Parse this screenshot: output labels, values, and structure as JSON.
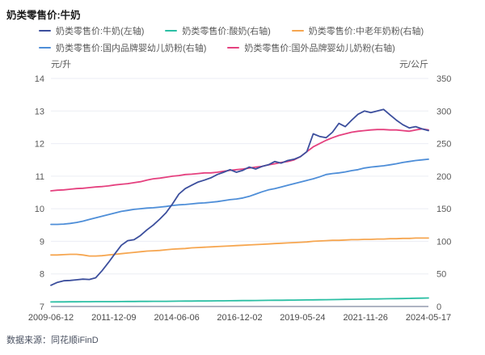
{
  "header": {
    "title": "奶类零售价:牛奶"
  },
  "source": {
    "text": "数据来源：同花顺iFinD"
  },
  "colors": {
    "grid": "#ebedf4",
    "axis_line": "#aeb4c2",
    "tick_text": "#595959",
    "x_tick_text": "#4a4a4a"
  },
  "chart_data": {
    "type": "line",
    "title": "奶类零售价:牛奶",
    "grid": "horizontal-only",
    "legend_position": "top-left",
    "x_labels": [
      "2009-06-12",
      "2011-12-09",
      "2014-06-06",
      "2016-12-02",
      "2019-05-24",
      "2021-11-26",
      "2024-05-17"
    ],
    "left_axis": {
      "unit": "元/升",
      "min": 7,
      "max": 14,
      "ticks": [
        14,
        13,
        12,
        11,
        10,
        9,
        8,
        7
      ]
    },
    "right_axis": {
      "unit": "元/公斤",
      "min": 0,
      "max": 350,
      "ticks": [
        350,
        300,
        250,
        200,
        150,
        100,
        50,
        0
      ]
    },
    "legend_rows": [
      [
        0,
        1,
        2
      ],
      [
        3,
        4
      ]
    ],
    "draw_order": [
      1,
      2,
      3,
      4,
      0
    ],
    "series": [
      {
        "name": "奶类零售价:牛奶(左轴)",
        "axis": "left",
        "color": "#3c4f9d",
        "values": [
          7.65,
          7.74,
          7.79,
          7.8,
          7.82,
          7.84,
          7.83,
          7.88,
          8.1,
          8.35,
          8.62,
          8.88,
          9.02,
          9.05,
          9.18,
          9.35,
          9.5,
          9.68,
          9.88,
          10.15,
          10.45,
          10.62,
          10.72,
          10.82,
          10.88,
          10.95,
          11.05,
          11.12,
          11.2,
          11.12,
          11.18,
          11.28,
          11.22,
          11.3,
          11.35,
          11.45,
          11.4,
          11.48,
          11.52,
          11.6,
          11.75,
          12.3,
          12.22,
          12.18,
          12.35,
          12.62,
          12.52,
          12.72,
          12.9,
          13.0,
          12.95,
          13.0,
          13.05,
          12.88,
          12.72,
          12.58,
          12.48,
          12.52,
          12.45,
          12.4
        ]
      },
      {
        "name": "奶类零售价:酸奶(右轴)",
        "axis": "right",
        "color": "#2bbfa4",
        "values": [
          7.0,
          7.1,
          7.1,
          7.2,
          7.2,
          7.3,
          7.3,
          7.4,
          7.4,
          7.5,
          7.5,
          7.6,
          7.7,
          7.7,
          7.8,
          7.8,
          7.9,
          8.0,
          8.0,
          8.1,
          8.2,
          8.3,
          8.3,
          8.4,
          8.5,
          8.6,
          8.7,
          8.7,
          8.8,
          8.9,
          9.0,
          9.1,
          9.2,
          9.3,
          9.4,
          9.5,
          9.6,
          9.7,
          9.8,
          9.9,
          10.0,
          10.2,
          10.3,
          10.4,
          10.6,
          10.7,
          10.9,
          11.0,
          11.2,
          11.3,
          11.5,
          11.6,
          11.8,
          11.9,
          12.1,
          12.2,
          12.4,
          12.6,
          12.8,
          13.0
        ]
      },
      {
        "name": "奶类零售价:中老年奶粉(右轴)",
        "axis": "right",
        "color": "#f6a650",
        "values": [
          79,
          79,
          79.5,
          80,
          80,
          79,
          77.5,
          77.5,
          78,
          79,
          80,
          81,
          82,
          83,
          84,
          85,
          85.5,
          86,
          87,
          88,
          88.5,
          89,
          90,
          90.5,
          91,
          91.5,
          92,
          92.5,
          93,
          93.5,
          94,
          94.5,
          95,
          95.5,
          96,
          96.5,
          97,
          97.5,
          98,
          98.5,
          99,
          100,
          100.5,
          101,
          101.5,
          101.5,
          102,
          102.5,
          102.5,
          103,
          103,
          103.5,
          103.5,
          104,
          104,
          104.5,
          104.5,
          105,
          105,
          105
        ]
      },
      {
        "name": "奶类零售价:国内品牌婴幼儿奶粉(右轴)",
        "axis": "right",
        "color": "#4e8ed8",
        "values": [
          126,
          126,
          126.5,
          127.5,
          129,
          131,
          133.5,
          136,
          138.5,
          141,
          143.5,
          146,
          147.5,
          149,
          150,
          151,
          151.5,
          152.5,
          153.5,
          155,
          156,
          156.5,
          157.5,
          158.5,
          159,
          160,
          161,
          162.5,
          164,
          165,
          166.5,
          169,
          172.5,
          176,
          179,
          181,
          183.5,
          186,
          188.5,
          191,
          193.5,
          196,
          199,
          202.5,
          204,
          205,
          206.5,
          208.5,
          210,
          212.5,
          214,
          215,
          216,
          217.5,
          219,
          221,
          222.5,
          224,
          225,
          226
        ]
      },
      {
        "name": "奶类零售价:国外品牌婴幼儿奶粉(右轴)",
        "axis": "right",
        "color": "#e5417f",
        "values": [
          177.5,
          178.5,
          179,
          180,
          181,
          181.5,
          182.5,
          183.5,
          184,
          185,
          186.5,
          187.5,
          188.5,
          190,
          191.5,
          194,
          196,
          197,
          198.5,
          200,
          201,
          202.5,
          203,
          204,
          205,
          205,
          206,
          207.5,
          209,
          210,
          211,
          212.5,
          214,
          215,
          217.5,
          219,
          221,
          222.5,
          225,
          230,
          237.5,
          245,
          250,
          255,
          259,
          262.5,
          265,
          267.5,
          269,
          270,
          271,
          271.5,
          271.5,
          271,
          271,
          270,
          269,
          271,
          272.5,
          271
        ]
      }
    ]
  }
}
